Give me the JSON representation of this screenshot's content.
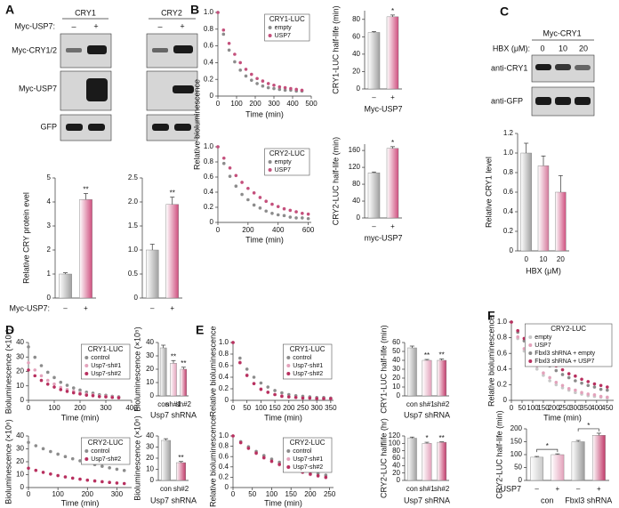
{
  "figure": {
    "letters": [
      "A",
      "B",
      "C",
      "D",
      "E",
      "F"
    ],
    "blot_a": {
      "headers": [
        "CRY1",
        "CRY2"
      ],
      "treatment": "Myc-USP7:",
      "signs": [
        "–",
        "+"
      ],
      "rows": [
        "Myc-CRY1/2",
        "Myc-USP7",
        "GFP"
      ]
    },
    "blot_c": {
      "header": "Myc-CRY1",
      "treatment": "HBX (μM):",
      "doses": [
        "0",
        "10",
        "20"
      ],
      "rows": [
        "anti-CRY1",
        "anti-GFP"
      ]
    }
  },
  "chart_data": [
    {
      "type": "bar",
      "ylabel": "Relative CRY protein evel",
      "treatment": "Myc-USP7:",
      "categories": [
        "–",
        "+"
      ],
      "values": [
        1,
        4.1
      ],
      "errors": [
        0.05,
        0.25
      ],
      "annotations": [
        null,
        "**"
      ],
      "colors": [
        "#a0a0a0",
        "#cf4f7f"
      ],
      "ylim": [
        0,
        5
      ],
      "yticks": [
        0,
        1,
        2,
        3,
        4,
        5
      ]
    },
    {
      "type": "bar",
      "categories": [
        "–",
        "+"
      ],
      "values": [
        1,
        1.95
      ],
      "errors": [
        0.12,
        0.15
      ],
      "annotations": [
        null,
        "**"
      ],
      "colors": [
        "#a0a0a0",
        "#cf4f7f"
      ],
      "ylim": [
        0,
        2.5
      ],
      "yticks": [
        0,
        0.5,
        {
          "value": 1,
          "label": "1.0"
        },
        1.5,
        {
          "value": 2,
          "label": "2.0"
        },
        2.5
      ]
    },
    {
      "type": "scatter",
      "ylabel": "Relative bioluminescence",
      "xlabel": "Time (min)",
      "legend_title": "CRY1-LUC",
      "legend": "upper right",
      "x": [
        0,
        30,
        60,
        90,
        120,
        150,
        180,
        210,
        240,
        270,
        300,
        330,
        360,
        390,
        420,
        450
      ],
      "series": [
        {
          "name": "empty",
          "color": "#8c8c8c",
          "values": [
            1,
            0.74,
            0.55,
            0.41,
            0.31,
            0.24,
            0.19,
            0.15,
            0.12,
            0.1,
            0.09,
            0.08,
            0.07,
            0.07,
            0.06,
            0.06
          ]
        },
        {
          "name": "USP7",
          "color": "#c4507c",
          "values": [
            1,
            0.79,
            0.63,
            0.5,
            0.4,
            0.32,
            0.26,
            0.21,
            0.18,
            0.15,
            0.13,
            0.11,
            0.1,
            0.09,
            0.08,
            0.07
          ]
        }
      ],
      "xlim": [
        0,
        500
      ],
      "xticks": [
        0,
        100,
        200,
        300,
        400,
        500
      ],
      "ylim": [
        0,
        1
      ],
      "yticks": [
        0,
        0.2,
        0.4,
        0.6,
        0.8,
        {
          "value": 1,
          "label": "1.0"
        }
      ]
    },
    {
      "type": "bar",
      "ylabel": "CRY1-LUC half-life (min)",
      "xlabel": "Myc-USP7",
      "categories": [
        "–",
        "+"
      ],
      "values": [
        65,
        83
      ],
      "errors": [
        1,
        2
      ],
      "annotations": [
        null,
        "*"
      ],
      "colors": [
        "#a0a0a0",
        "#cf4f7f"
      ],
      "ylim": [
        0,
        90
      ],
      "yticks": [
        0,
        20,
        40,
        60,
        80
      ]
    },
    {
      "type": "scatter",
      "xlabel": "Time (min)",
      "legend_title": "CRY2-LUC",
      "legend": "upper right",
      "x": [
        0,
        40,
        80,
        120,
        160,
        200,
        240,
        280,
        320,
        360,
        400,
        440,
        480,
        520,
        560,
        600
      ],
      "series": [
        {
          "name": "empty",
          "color": "#8c8c8c",
          "values": [
            1,
            0.78,
            0.61,
            0.48,
            0.37,
            0.3,
            0.23,
            0.19,
            0.15,
            0.12,
            0.1,
            0.09,
            0.07,
            0.06,
            0.06,
            0.05
          ]
        },
        {
          "name": "USP7",
          "color": "#c4507c",
          "values": [
            1,
            0.85,
            0.72,
            0.62,
            0.53,
            0.45,
            0.39,
            0.33,
            0.28,
            0.24,
            0.21,
            0.18,
            0.16,
            0.14,
            0.12,
            0.11
          ]
        }
      ],
      "xlim": [
        0,
        620
      ],
      "xticks": [
        0,
        200,
        400,
        600
      ],
      "ylim": [
        0,
        1
      ],
      "yticks": [
        0,
        0.2,
        0.4,
        0.6,
        0.8,
        {
          "value": 1,
          "label": "1.0"
        }
      ]
    },
    {
      "type": "bar",
      "ylabel": "CRY2-LUC half-life (min)",
      "xlabel": "myc-USP7",
      "categories": [
        "–",
        "+"
      ],
      "values": [
        107,
        165
      ],
      "errors": [
        2,
        4
      ],
      "annotations": [
        null,
        "*"
      ],
      "colors": [
        "#a0a0a0",
        "#cf4f7f"
      ],
      "ylim": [
        0,
        175
      ],
      "yticks": [
        0,
        40,
        80,
        120,
        160
      ]
    },
    {
      "type": "bar",
      "ylabel": "Relative CRY1 level",
      "xlabel": "HBX (μM)",
      "categories": [
        "0",
        "10",
        "20"
      ],
      "values": [
        1,
        0.87,
        0.6
      ],
      "errors": [
        0.1,
        0.1,
        0.17
      ],
      "colors": [
        "#a0a0a0",
        "#d57a9c",
        "#cf4f7f"
      ],
      "ylim": [
        0,
        1.2
      ],
      "yticks": [
        0,
        0.2,
        0.4,
        0.6,
        0.8,
        {
          "value": 1,
          "label": "1.0"
        },
        1.2
      ]
    },
    {
      "type": "scatter",
      "ylabel": "Bioluminescence (×10⁵)",
      "xlabel": "Time (min)",
      "legend_title": "CRY1-LUC",
      "legend": "upper right",
      "x": [
        0,
        25,
        50,
        75,
        100,
        125,
        150,
        175,
        200,
        225,
        250,
        275,
        300,
        325,
        350
      ],
      "series": [
        {
          "name": "control",
          "color": "#8c8c8c",
          "values": [
            37,
            29.8,
            24,
            19.4,
            15.8,
            12.5,
            10.4,
            8.6,
            7.1,
            5.7,
            5,
            3.9,
            3.5,
            2.8,
            2.4
          ]
        },
        {
          "name": "Usp7-sh#1",
          "color": "#e3a2bb",
          "values": [
            26,
            21,
            17,
            13.8,
            11.3,
            9,
            7.5,
            6.3,
            5.3,
            4.3,
            3.8,
            3,
            2.8,
            2.3,
            2
          ]
        },
        {
          "name": "Usp7-sh#2",
          "color": "#b8305f",
          "values": [
            21,
            17,
            13.8,
            11.2,
            9.2,
            7.4,
            6.2,
            5.2,
            4.4,
            3.6,
            3.2,
            2.6,
            2.4,
            2,
            1.8
          ]
        }
      ],
      "xlim": [
        0,
        400
      ],
      "xticks": [
        0,
        100,
        200,
        300,
        400
      ],
      "ylim": [
        0,
        40
      ],
      "yticks": [
        0,
        10,
        20,
        30,
        40
      ]
    },
    {
      "type": "bar",
      "ylabel": "Bioluminescence (×10⁵)",
      "xlabel": "Usp7 shRNA",
      "categories": [
        "con",
        "sh#1",
        "sh#2"
      ],
      "values": [
        36,
        24.5,
        20
      ],
      "errors": [
        2,
        2,
        1.5
      ],
      "annotations": [
        null,
        "**",
        "**"
      ],
      "colors": [
        "#a0a0a0",
        "#e3a2bb",
        "#c23a6a"
      ],
      "ylim": [
        0,
        40
      ],
      "yticks": [
        0,
        10,
        20,
        30,
        40
      ]
    },
    {
      "type": "scatter",
      "ylabel": "Bioluminescence (×10⁶)",
      "xlabel": "Time (min)",
      "legend_title": "CRY2-LUC",
      "legend": "upper right",
      "x": [
        0,
        25,
        50,
        75,
        100,
        125,
        150,
        175,
        200,
        225,
        250,
        275,
        300,
        325
      ],
      "series": [
        {
          "name": "control",
          "color": "#8c8c8c",
          "values": [
            35,
            32.4,
            30.1,
            27.9,
            25.9,
            24,
            22.3,
            20.7,
            19.2,
            17.8,
            16.5,
            15.3,
            14.2,
            13.2
          ]
        },
        {
          "name": "Usp7-sh#2",
          "color": "#b8305f",
          "values": [
            15,
            13.3,
            11.8,
            10.5,
            9.3,
            8.2,
            7.3,
            6.5,
            5.7,
            5.1,
            4.5,
            4,
            3.5,
            3.1
          ]
        }
      ],
      "xlim": [
        0,
        350
      ],
      "xticks": [
        0,
        100,
        200,
        300
      ],
      "ylim": [
        0,
        40
      ],
      "yticks": [
        0,
        10,
        20,
        30,
        40
      ]
    },
    {
      "type": "bar",
      "ylabel": "Bioluminescence (×10⁶)",
      "xlabel": "Usp7 shRNA",
      "categories": [
        "con",
        "sh#2"
      ],
      "values": [
        36,
        16
      ],
      "errors": [
        1.5,
        1
      ],
      "annotations": [
        null,
        "**"
      ],
      "colors": [
        "#a0a0a0",
        "#c23a6a"
      ],
      "ylim": [
        0,
        40
      ],
      "yticks": [
        0,
        10,
        20,
        30,
        40
      ]
    },
    {
      "type": "scatter",
      "ylabel": "Relative bioluminescence",
      "xlabel": "Time (min)",
      "legend_title": "CRY1-LUC",
      "legend": "upper right",
      "x": [
        0,
        25,
        50,
        75,
        100,
        125,
        150,
        175,
        200,
        225,
        250,
        275,
        300,
        325,
        350
      ],
      "series": [
        {
          "name": "control",
          "color": "#8c8c8c",
          "values": [
            1,
            0.73,
            0.54,
            0.4,
            0.3,
            0.23,
            0.17,
            0.13,
            0.1,
            0.08,
            0.07,
            0.06,
            0.05,
            0.05,
            0.04
          ]
        },
        {
          "name": "Usp7-sh#1",
          "color": "#e3a2bb",
          "values": [
            1,
            0.66,
            0.44,
            0.29,
            0.2,
            0.14,
            0.1,
            0.08,
            0.06,
            0.05,
            0.04,
            0.04,
            0.03,
            0.03,
            0.03
          ]
        },
        {
          "name": "Usp7-sh#2",
          "color": "#b8305f",
          "values": [
            1,
            0.65,
            0.43,
            0.29,
            0.19,
            0.14,
            0.1,
            0.07,
            0.06,
            0.05,
            0.04,
            0.04,
            0.03,
            0.03,
            0.03
          ]
        }
      ],
      "xlim": [
        0,
        360
      ],
      "xticks": [
        0,
        50,
        100,
        150,
        200,
        250,
        300,
        350
      ],
      "ylim": [
        0,
        1
      ],
      "yticks": [
        0,
        0.2,
        0.4,
        0.6,
        0.8,
        {
          "value": 1,
          "label": "1.0"
        }
      ]
    },
    {
      "type": "bar",
      "ylabel": "CRY1-LUC half-life (min)",
      "xlabel": "Usp7 shRNA",
      "categories": [
        "con",
        "sh#1",
        "sh#2"
      ],
      "values": [
        54,
        40,
        40
      ],
      "errors": [
        2,
        1,
        1.5
      ],
      "annotations": [
        null,
        "**",
        "**"
      ],
      "colors": [
        "#a0a0a0",
        "#e3a2bb",
        "#c23a6a"
      ],
      "ylim": [
        0,
        60
      ],
      "yticks": [
        0,
        10,
        20,
        30,
        40,
        50,
        60
      ]
    },
    {
      "type": "scatter",
      "ylabel": "Relative bioluminescence",
      "xlabel": "Time (min)",
      "legend_title": "CRY2-LUC",
      "legend": "upper right",
      "x": [
        0,
        20,
        40,
        60,
        80,
        100,
        120,
        140,
        160,
        180,
        200,
        220,
        240
      ],
      "series": [
        {
          "name": "control",
          "color": "#8c8c8c",
          "values": [
            1,
            0.89,
            0.79,
            0.7,
            0.62,
            0.55,
            0.49,
            0.43,
            0.38,
            0.34,
            0.3,
            0.27,
            0.24
          ]
        },
        {
          "name": "Usp7-sh#1",
          "color": "#e3a2bb",
          "values": [
            1,
            0.87,
            0.76,
            0.66,
            0.57,
            0.5,
            0.44,
            0.38,
            0.33,
            0.29,
            0.25,
            0.22,
            0.19
          ]
        },
        {
          "name": "Usp7-sh#2",
          "color": "#b8305f",
          "values": [
            1,
            0.87,
            0.76,
            0.67,
            0.58,
            0.51,
            0.45,
            0.39,
            0.34,
            0.3,
            0.26,
            0.23,
            0.2
          ]
        }
      ],
      "xlim": [
        0,
        260
      ],
      "xticks": [
        0,
        50,
        100,
        150,
        200,
        250
      ],
      "ylim": [
        0,
        1
      ],
      "yticks": [
        0,
        0.2,
        0.4,
        0.6,
        0.8,
        {
          "value": 1,
          "label": "1.0"
        }
      ]
    },
    {
      "type": "bar",
      "ylabel": "CRY2-LUC halflife (hr)",
      "xlabel": "Usp7 shRNA",
      "categories": [
        "con",
        "sh#1",
        "sh#2"
      ],
      "values": [
        114,
        100,
        103
      ],
      "errors": [
        3,
        3,
        1
      ],
      "annotations": [
        null,
        "*",
        "**"
      ],
      "colors": [
        "#a0a0a0",
        "#e3a2bb",
        "#c23a6a"
      ],
      "ylim": [
        0,
        120
      ],
      "yticks": [
        0,
        20,
        40,
        60,
        80,
        100,
        120
      ]
    },
    {
      "type": "scatter",
      "ylabel": "Relative bioluminescence",
      "xlabel": "Time (min)",
      "legend_title": "CRY2-LUC",
      "legend": "upper right",
      "x": [
        0,
        30,
        60,
        90,
        120,
        150,
        180,
        210,
        240,
        270,
        300,
        330,
        360,
        390,
        420,
        450
      ],
      "series": [
        {
          "name": "empty",
          "color": "#c8c8c8",
          "values": [
            1,
            0.79,
            0.63,
            0.5,
            0.4,
            0.32,
            0.25,
            0.2,
            0.16,
            0.13,
            0.1,
            0.08,
            0.06,
            0.05,
            0.04,
            0.03
          ]
        },
        {
          "name": "USP7",
          "color": "#e3a2bb",
          "values": [
            1,
            0.81,
            0.66,
            0.54,
            0.44,
            0.35,
            0.29,
            0.23,
            0.19,
            0.15,
            0.13,
            0.1,
            0.08,
            0.07,
            0.05,
            0.04
          ]
        },
        {
          "name": "Fbxl3 shRNA + empty",
          "color": "#8a8a8a",
          "values": [
            1,
            0.87,
            0.76,
            0.66,
            0.57,
            0.5,
            0.44,
            0.38,
            0.33,
            0.29,
            0.25,
            0.22,
            0.19,
            0.17,
            0.14,
            0.13
          ]
        },
        {
          "name": "Fbxl3 shRNA + USP7",
          "color": "#b8305f",
          "values": [
            1,
            0.89,
            0.79,
            0.7,
            0.62,
            0.55,
            0.49,
            0.44,
            0.39,
            0.34,
            0.31,
            0.27,
            0.24,
            0.21,
            0.19,
            0.17
          ]
        }
      ],
      "xlim": [
        0,
        480
      ],
      "xticks": [
        0,
        50,
        100,
        150,
        200,
        250,
        300,
        350,
        400,
        450
      ],
      "ylim": [
        0,
        1
      ],
      "yticks": [
        0,
        0.2,
        0.4,
        0.6,
        0.8,
        {
          "value": 1,
          "label": "1.0"
        }
      ]
    },
    {
      "type": "bar",
      "ylabel": "CRY2-LUC half-life (min)",
      "treatment": "USP7",
      "categories": [
        "–",
        "+",
        "–",
        "+"
      ],
      "group_labels": [
        "con",
        "Fbxl3 shRNA"
      ],
      "values": [
        90,
        100,
        150,
        175
      ],
      "errors": [
        3,
        3,
        5,
        8
      ],
      "brackets": [
        {
          "from": 0,
          "to": 1,
          "text": "*"
        },
        {
          "from": 2,
          "to": 3,
          "text": "*"
        }
      ],
      "colors": [
        "#c8c8c8",
        "#e3a2bb",
        "#9a9a9a",
        "#c23a6a"
      ],
      "ylim": [
        0,
        200
      ],
      "yticks": [
        0,
        50,
        100,
        150,
        200
      ]
    }
  ]
}
